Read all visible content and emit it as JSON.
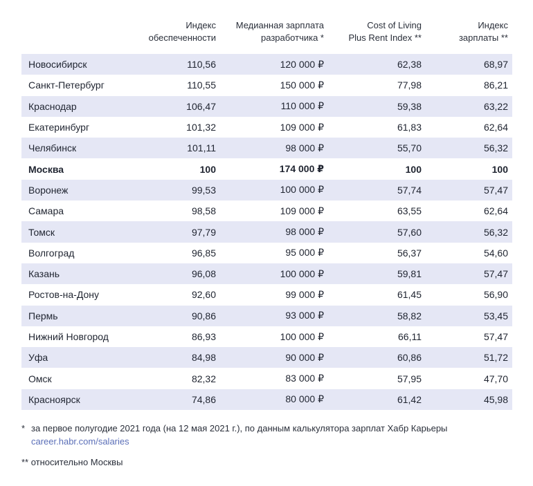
{
  "headers": [
    [
      "",
      ""
    ],
    [
      "Индекс",
      "обеспеченности"
    ],
    [
      "Медианная зарплата",
      "разработчика *"
    ],
    [
      "Cost of Living",
      "Plus Rent Index **"
    ],
    [
      "Индекс",
      "зарплаты **"
    ]
  ],
  "rows": [
    {
      "city": "Новосибирск",
      "a": "110,56",
      "b": "120 000 ₽",
      "c": "62,38",
      "d": "68,97"
    },
    {
      "city": "Санкт-Петербург",
      "a": "110,55",
      "b": "150 000 ₽",
      "c": "77,98",
      "d": "86,21"
    },
    {
      "city": "Краснодар",
      "a": "106,47",
      "b": "110 000 ₽",
      "c": "59,38",
      "d": "63,22"
    },
    {
      "city": "Екатеринбург",
      "a": "101,32",
      "b": "109 000 ₽",
      "c": "61,83",
      "d": "62,64"
    },
    {
      "city": "Челябинск",
      "a": "101,11",
      "b": "98 000 ₽",
      "c": "55,70",
      "d": "56,32"
    },
    {
      "city": "Москва",
      "a": "100",
      "b": "174 000 ₽",
      "c": "100",
      "d": "100"
    },
    {
      "city": "Воронеж",
      "a": "99,53",
      "b": "100 000 ₽",
      "c": "57,74",
      "d": "57,47"
    },
    {
      "city": "Самара",
      "a": "98,58",
      "b": "109 000 ₽",
      "c": "63,55",
      "d": "62,64"
    },
    {
      "city": "Томск",
      "a": "97,79",
      "b": "98 000 ₽",
      "c": "57,60",
      "d": "56,32"
    },
    {
      "city": "Волгоград",
      "a": "96,85",
      "b": "95 000 ₽",
      "c": "56,37",
      "d": "54,60"
    },
    {
      "city": "Казань",
      "a": "96,08",
      "b": "100 000 ₽",
      "c": "59,81",
      "d": "57,47"
    },
    {
      "city": "Ростов-на-Дону",
      "a": "92,60",
      "b": "99 000 ₽",
      "c": "61,45",
      "d": "56,90"
    },
    {
      "city": "Пермь",
      "a": "90,86",
      "b": "93 000 ₽",
      "c": "58,82",
      "d": "53,45"
    },
    {
      "city": "Нижний Новгород",
      "a": "86,93",
      "b": "100 000 ₽",
      "c": "66,11",
      "d": "57,47"
    },
    {
      "city": "Уфа",
      "a": "84,98",
      "b": "90 000 ₽",
      "c": "60,86",
      "d": "51,72"
    },
    {
      "city": "Омск",
      "a": "82,32",
      "b": "83 000 ₽",
      "c": "57,95",
      "d": "47,70"
    },
    {
      "city": "Красноярск",
      "a": "74,86",
      "b": "80 000 ₽",
      "c": "61,42",
      "d": "45,98"
    }
  ],
  "notes": {
    "n1_mark": "*",
    "n1_text": "за первое полугодие 2021 года (на 12 мая 2021 г.), по данным калькулятора зарплат Хабр Карьеры",
    "n1_link": "career.habr.com/salaries",
    "n2_text": "** относительно Москвы"
  },
  "colors": {
    "band": "#e5e7f5",
    "link": "#5b6fb8",
    "text": "#1f2430"
  }
}
